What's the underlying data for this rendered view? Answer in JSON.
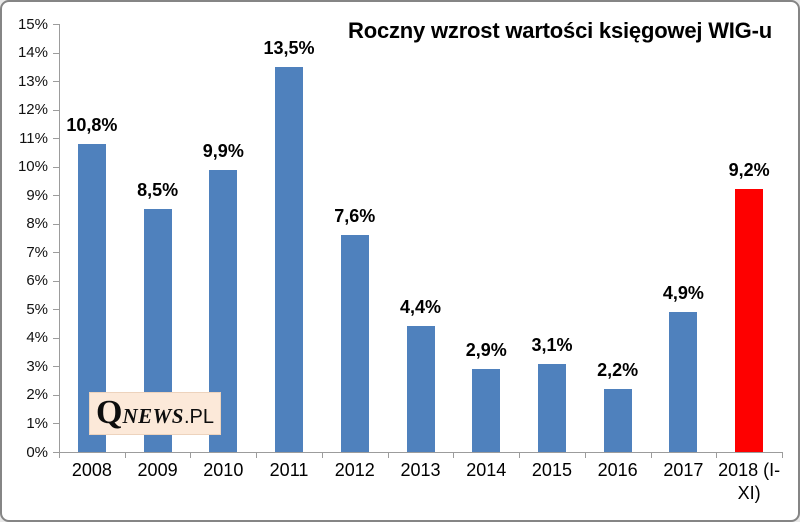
{
  "window": {
    "background": "#ffffff",
    "border_color": "#858585"
  },
  "chart_data": {
    "type": "bar",
    "title": "Roczny wzrost wartości księgowej WIG-u",
    "categories": [
      "2008",
      "2009",
      "2010",
      "2011",
      "2012",
      "2013",
      "2014",
      "2015",
      "2016",
      "2017",
      "2018 (I-XI)"
    ],
    "values": [
      10.8,
      8.5,
      9.9,
      13.5,
      7.6,
      4.4,
      2.9,
      3.1,
      2.2,
      4.9,
      9.2
    ],
    "bar_labels": [
      "10,8%",
      "8,5%",
      "9,9%",
      "13,5%",
      "7,6%",
      "4,4%",
      "2,9%",
      "3,1%",
      "2,2%",
      "4,9%",
      "9,2%"
    ],
    "xtick_display": [
      "2008",
      "2009",
      "2010",
      "2011",
      "2012",
      "2013",
      "2014",
      "2015",
      "2016",
      "2017",
      "2018 (I-\nXI)"
    ],
    "ytick_labels": [
      "0%",
      "1%",
      "2%",
      "3%",
      "4%",
      "5%",
      "6%",
      "7%",
      "8%",
      "9%",
      "10%",
      "11%",
      "12%",
      "13%",
      "14%",
      "15%"
    ],
    "ylim": [
      0,
      15
    ],
    "ytick_step": 1,
    "bar_color": "#4f81bd",
    "highlight_color": "#fe0000",
    "highlight_index": 10,
    "axis_color": "#9c9c9c",
    "grid": false,
    "legend": false
  },
  "watermark": {
    "q": "Q",
    "news": "NEWS",
    "pl": ".PL",
    "background": "#fce9d9"
  }
}
